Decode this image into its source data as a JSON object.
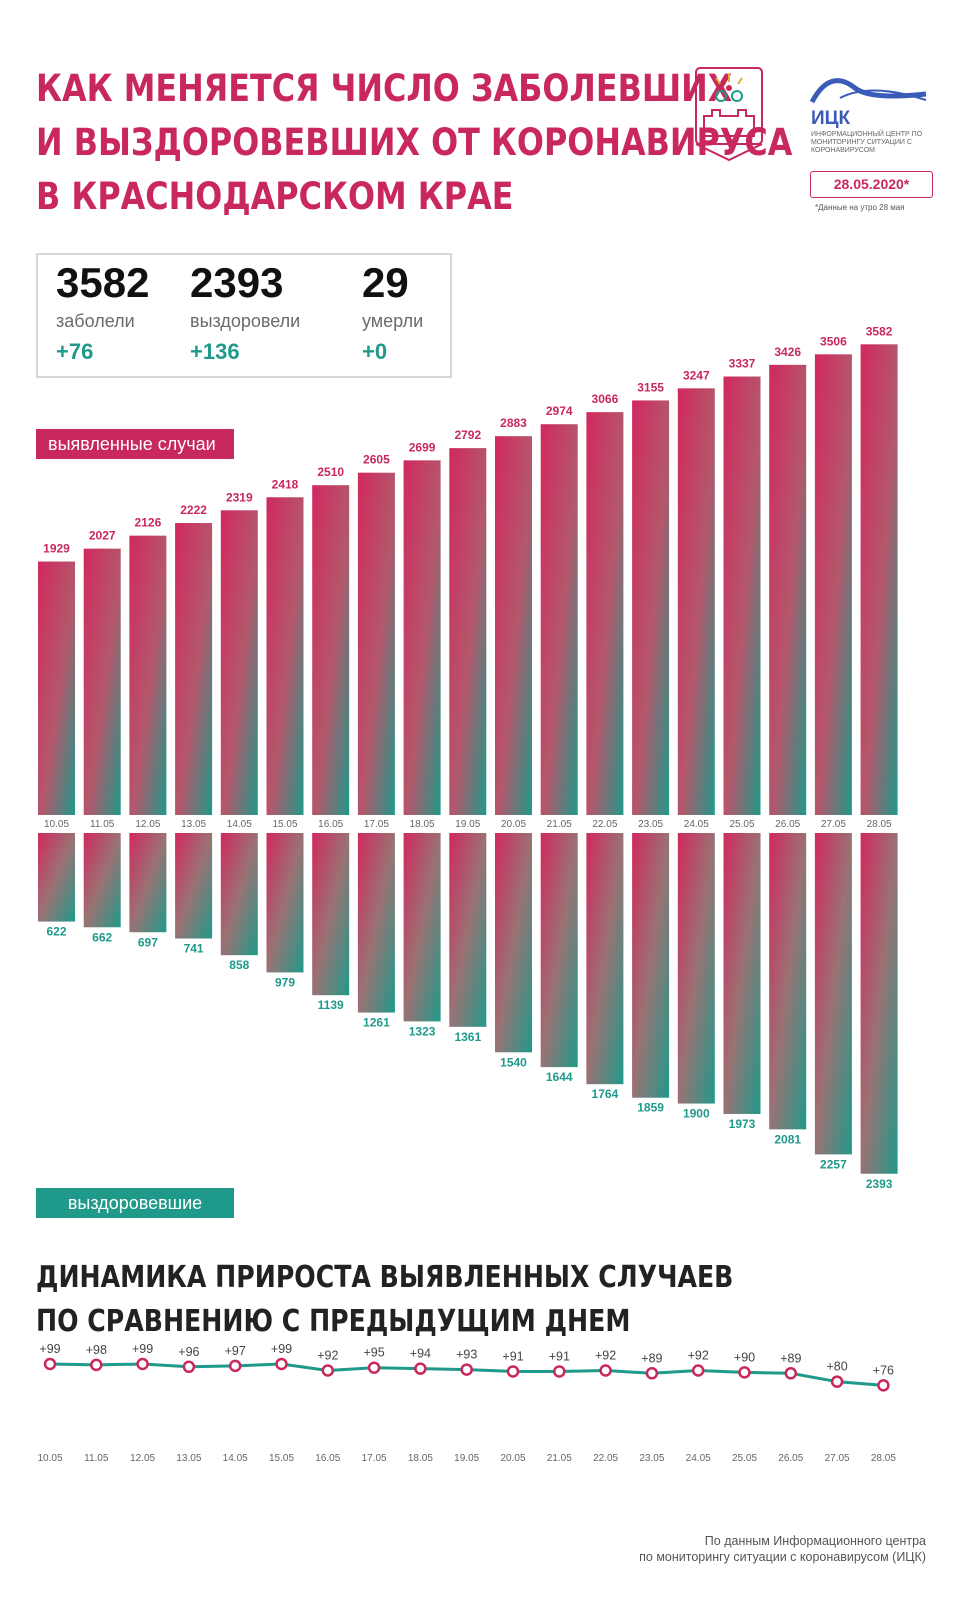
{
  "header": {
    "title_lines": [
      "КАК МЕНЯЕТСЯ ЧИСЛО ЗАБОЛЕВШИХ",
      "И ВЫЗДОРОВЕВШИХ ОТ КОРОНАВИРУСА",
      "В КРАСНОДАРСКОМ КРАЕ"
    ],
    "logo_name": "ИЦК",
    "logo_subtitle": "ИНФОРМАЦИОННЫЙ ЦЕНТР ПО МОНИТОРИНГУ СИТУАЦИИ С КОРОНАВИРУСОМ",
    "date": "28.05.2020*",
    "date_note": "*Данные на утро 28 мая"
  },
  "stats": [
    {
      "value": "3582",
      "label": "заболели",
      "delta": "+76"
    },
    {
      "value": "2393",
      "label": "выздоровели",
      "delta": "+136"
    },
    {
      "value": "29",
      "label": "умерли",
      "delta": "+0"
    }
  ],
  "labels": {
    "cases": "выявленные случаи",
    "recovered": "выздоровевшие"
  },
  "subtitle_lines": [
    "ДИНАМИКА ПРИРОСТА ВЫЯВЛЕННЫХ СЛУЧАЕВ",
    "ПО СРАВНЕНИЮ С ПРЕДЫДУЩИМ ДНЕМ"
  ],
  "source_lines": [
    "По данным Информационного центра",
    "по мониторингу ситуации с коронавирусом (ИЦК)"
  ],
  "colors": {
    "accent": "#c9285c",
    "teal": "#1f9a8a",
    "bar_mid": "#b06670"
  },
  "chart_data": [
    {
      "type": "bar",
      "categories": [
        "10.05",
        "11.05",
        "12.05",
        "13.05",
        "14.05",
        "15.05",
        "16.05",
        "17.05",
        "18.05",
        "19.05",
        "20.05",
        "21.05",
        "22.05",
        "23.05",
        "24.05",
        "25.05",
        "26.05",
        "27.05",
        "28.05"
      ],
      "series": [
        {
          "name": "выявленные случаи",
          "values": [
            1929,
            2027,
            2126,
            2222,
            2319,
            2418,
            2510,
            2605,
            2699,
            2792,
            2883,
            2974,
            3066,
            3155,
            3247,
            3337,
            3426,
            3506,
            3582
          ]
        },
        {
          "name": "выздоровевшие",
          "values": [
            622,
            662,
            697,
            741,
            858,
            979,
            1139,
            1261,
            1323,
            1361,
            1540,
            1644,
            1764,
            1859,
            1900,
            1973,
            2081,
            2257,
            2393
          ]
        }
      ]
    },
    {
      "type": "line",
      "categories": [
        "10.05",
        "11.05",
        "12.05",
        "13.05",
        "14.05",
        "15.05",
        "16.05",
        "17.05",
        "18.05",
        "19.05",
        "20.05",
        "21.05",
        "22.05",
        "23.05",
        "24.05",
        "25.05",
        "26.05",
        "27.05",
        "28.05"
      ],
      "values": [
        99,
        98,
        99,
        96,
        97,
        99,
        92,
        95,
        94,
        93,
        91,
        91,
        92,
        89,
        92,
        90,
        89,
        80,
        76
      ],
      "labels": [
        "+99",
        "+98",
        "+99",
        "+96",
        "+97",
        "+99",
        "+92",
        "+95",
        "+94",
        "+93",
        "+91",
        "+91",
        "+92",
        "+89",
        "+92",
        "+90",
        "+89",
        "+80",
        "+76"
      ]
    }
  ]
}
